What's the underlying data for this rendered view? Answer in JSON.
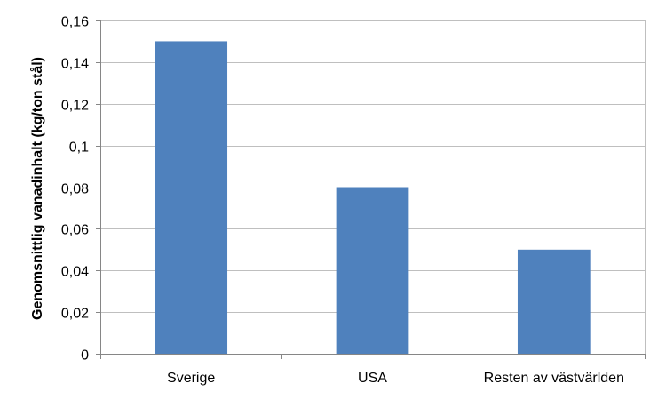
{
  "chart_data": {
    "type": "bar",
    "title": "",
    "xlabel": "",
    "ylabel": "Genomsnittlig vanadinhalt (kg/ton stål)",
    "categories": [
      "Sverige",
      "USA",
      "Resten av västvärlden"
    ],
    "values": [
      0.15,
      0.08,
      0.05
    ],
    "ylim": [
      0,
      0.16
    ],
    "yticks": [
      "0",
      "0,02",
      "0,04",
      "0,06",
      "0,08",
      "0,1",
      "0,12",
      "0,14",
      "0,16"
    ],
    "grid": true,
    "legend": "none",
    "bar_color": "#4f81bd",
    "grid_color": "#bfbfbf",
    "axis_color": "#868686"
  }
}
